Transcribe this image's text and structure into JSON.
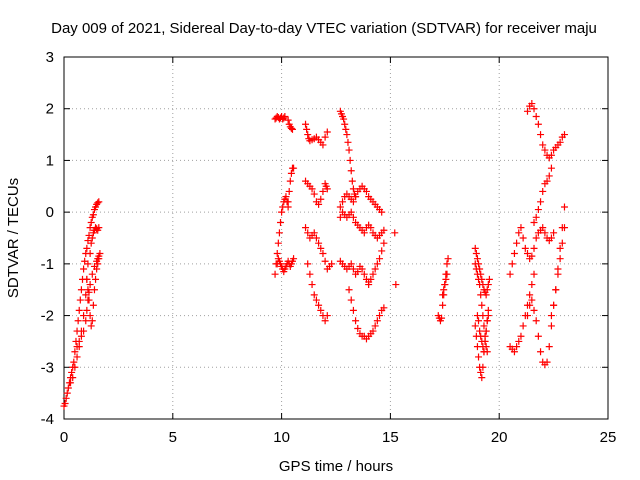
{
  "chart_data": {
    "type": "scatter",
    "title": "Day 009 of 2021, Sidereal Day-to-day VTEC variation (SDTVAR) for receiver maju",
    "xlabel": "GPS time / hours",
    "ylabel": "SDTVAR / TECUs",
    "xlim": [
      0,
      25
    ],
    "ylim": [
      -4,
      3
    ],
    "x_ticks": [
      "0",
      "5",
      "10",
      "15",
      "20",
      "25"
    ],
    "y_ticks": [
      "-4",
      "-3",
      "-2",
      "-1",
      "0",
      "1",
      "2",
      "3"
    ],
    "grid": true,
    "marker": "+",
    "color": "#ff0000",
    "series": [
      {
        "x": [
          0.0,
          0.05,
          0.1,
          0.15,
          0.2,
          0.25,
          0.3,
          0.35,
          0.4,
          0.45,
          0.5,
          0.55,
          0.6,
          0.65,
          0.7,
          0.75,
          0.8,
          0.85,
          0.9,
          0.95,
          1.0,
          1.05,
          1.1,
          1.15,
          1.2,
          1.25,
          1.3,
          1.35,
          1.4,
          1.45,
          1.5,
          1.55,
          1.6
        ],
        "y": [
          -3.75,
          -3.7,
          -3.6,
          -3.5,
          -3.4,
          -3.3,
          -3.2,
          -3.1,
          -3.0,
          -2.9,
          -2.7,
          -2.5,
          -2.3,
          -2.1,
          -1.9,
          -1.7,
          -1.5,
          -1.3,
          -1.1,
          -0.95,
          -0.8,
          -0.7,
          -0.55,
          -0.45,
          -0.3,
          -0.2,
          -0.1,
          -0.05,
          0.05,
          0.1,
          0.15,
          0.18,
          0.2
        ]
      },
      {
        "x": [
          0.3,
          0.4,
          0.5,
          0.6,
          0.7,
          0.8,
          0.9,
          1.0,
          1.05,
          1.1,
          1.15,
          1.2,
          1.3,
          1.4,
          1.5,
          1.55,
          1.6,
          1.65
        ],
        "y": [
          -3.3,
          -3.2,
          -3.0,
          -2.8,
          -2.6,
          -2.4,
          -2.3,
          -2.1,
          -1.9,
          -1.7,
          -1.55,
          -1.4,
          -1.2,
          -1.05,
          -0.95,
          -0.9,
          -0.85,
          -0.8
        ]
      },
      {
        "x": [
          0.6,
          0.7,
          0.8,
          0.9,
          1.0,
          1.05,
          1.1,
          1.2,
          1.25,
          1.3,
          1.35,
          1.4,
          1.45,
          1.5,
          1.55,
          1.6
        ],
        "y": [
          -2.6,
          -2.5,
          -2.3,
          -2.0,
          -1.6,
          -1.3,
          -1.0,
          -0.8,
          -0.6,
          -0.5,
          -0.4,
          -0.35,
          -0.3,
          -0.32,
          -0.35,
          -0.3
        ]
      },
      {
        "x": [
          1.05,
          1.1,
          1.15,
          1.2,
          1.25,
          1.3,
          1.35,
          1.4,
          1.45,
          1.5,
          1.55,
          1.6
        ],
        "y": [
          -1.3,
          -1.5,
          -1.7,
          -2.0,
          -2.2,
          -2.1,
          -1.8,
          -1.5,
          -1.3,
          -1.1,
          -1.0,
          -0.9
        ]
      },
      {
        "x": [
          9.7,
          9.75,
          9.8,
          9.85,
          9.9,
          9.95,
          10.0,
          10.05,
          10.1,
          10.15,
          10.2,
          10.25,
          10.3
        ],
        "y": [
          -1.2,
          -1.0,
          -0.8,
          -0.6,
          -0.4,
          -0.2,
          0.0,
          0.1,
          0.2,
          0.25,
          0.3,
          0.2,
          0.1
        ]
      },
      {
        "x": [
          9.8,
          9.85,
          9.9,
          9.95,
          10.0,
          10.05,
          10.1,
          10.15,
          10.2,
          10.25,
          10.3,
          10.35,
          10.4,
          10.45,
          10.5,
          10.55
        ],
        "y": [
          -1.0,
          -0.9,
          -0.95,
          -1.0,
          -1.05,
          -1.1,
          -1.15,
          -1.1,
          -1.05,
          -1.0,
          -0.95,
          -1.0,
          -1.05,
          -1.0,
          -0.95,
          -0.9
        ]
      },
      {
        "x": [
          10.3,
          10.35,
          10.4,
          10.45,
          10.5,
          10.55
        ],
        "y": [
          0.2,
          0.4,
          0.6,
          0.75,
          0.85,
          0.85
        ]
      },
      {
        "x": [
          9.7,
          9.75,
          9.8,
          9.85,
          9.9,
          9.95,
          10.0,
          10.05,
          10.1,
          10.15,
          10.3,
          10.35,
          10.4,
          10.45,
          10.5
        ],
        "y": [
          1.8,
          1.82,
          1.85,
          1.83,
          1.8,
          1.82,
          1.85,
          1.8,
          1.82,
          1.85,
          1.78,
          1.7,
          1.65,
          1.62,
          1.6
        ]
      },
      {
        "x": [
          11.1,
          11.15,
          11.2,
          11.25,
          11.3,
          11.4,
          11.5,
          11.6,
          11.7,
          11.8,
          11.9,
          12.0,
          12.1
        ],
        "y": [
          1.7,
          1.6,
          1.5,
          1.42,
          1.38,
          1.4,
          1.42,
          1.45,
          1.4,
          1.35,
          1.3,
          1.45,
          1.55
        ]
      },
      {
        "x": [
          11.1,
          11.2,
          11.3,
          11.4,
          11.5,
          11.6,
          11.7,
          11.8,
          11.9,
          12.0,
          12.05,
          12.1
        ],
        "y": [
          0.6,
          0.55,
          0.5,
          0.45,
          0.35,
          0.2,
          0.15,
          0.25,
          0.4,
          0.55,
          0.5,
          0.45
        ]
      },
      {
        "x": [
          11.1,
          11.2,
          11.3,
          11.4,
          11.5,
          11.6,
          11.7,
          11.8,
          11.9,
          12.0,
          12.1,
          12.2,
          12.3
        ],
        "y": [
          -0.3,
          -0.4,
          -0.5,
          -0.45,
          -0.4,
          -0.5,
          -0.6,
          -0.7,
          -0.8,
          -0.95,
          -1.1,
          -1.05,
          -1.0
        ]
      },
      {
        "x": [
          11.2,
          11.3,
          11.4,
          11.5,
          11.6,
          11.7,
          11.8,
          11.9,
          12.0,
          12.1
        ],
        "y": [
          -1.0,
          -1.2,
          -1.4,
          -1.6,
          -1.7,
          -1.8,
          -1.9,
          -2.0,
          -2.1,
          -2.0
        ]
      },
      {
        "x": [
          12.7,
          12.75,
          12.8,
          12.85,
          12.9,
          12.95,
          13.0,
          13.05,
          13.1,
          13.15,
          13.2,
          13.25,
          13.3,
          13.35,
          13.4
        ],
        "y": [
          1.95,
          1.9,
          1.85,
          1.8,
          1.7,
          1.6,
          1.5,
          1.35,
          1.2,
          1.0,
          0.8,
          0.6,
          0.45,
          0.35,
          0.3
        ]
      },
      {
        "x": [
          12.7,
          12.8,
          12.9,
          13.0,
          13.1,
          13.2,
          13.3,
          13.4,
          13.5,
          13.6,
          13.7,
          13.8,
          13.9,
          14.0,
          14.1,
          14.2,
          14.3,
          14.4,
          14.5,
          14.6
        ],
        "y": [
          0.1,
          0.2,
          0.3,
          0.35,
          0.3,
          0.25,
          0.2,
          0.3,
          0.4,
          0.45,
          0.5,
          0.45,
          0.4,
          0.3,
          0.25,
          0.2,
          0.15,
          0.1,
          0.05,
          0.0
        ]
      },
      {
        "x": [
          12.7,
          12.8,
          12.9,
          13.0,
          13.1,
          13.2,
          13.3,
          13.4,
          13.5,
          13.6,
          13.7,
          13.8,
          13.9,
          14.0,
          14.1,
          14.2,
          14.3,
          14.4,
          14.5,
          14.6,
          14.7
        ],
        "y": [
          -0.1,
          0.0,
          -0.05,
          -0.1,
          -0.05,
          0.0,
          -0.1,
          -0.2,
          -0.25,
          -0.3,
          -0.35,
          -0.4,
          -0.3,
          -0.25,
          -0.3,
          -0.4,
          -0.45,
          -0.5,
          -0.45,
          -0.4,
          -0.35
        ]
      },
      {
        "x": [
          12.7,
          12.8,
          12.9,
          13.0,
          13.1,
          13.2,
          13.3,
          13.4,
          13.5,
          13.6,
          13.7,
          13.8,
          13.9,
          14.0
        ],
        "y": [
          -0.95,
          -1.0,
          -1.05,
          -1.1,
          -1.05,
          -1.0,
          -1.1,
          -1.2,
          -1.15,
          -1.05,
          -1.1,
          -1.2,
          -1.3,
          -1.35
        ]
      },
      {
        "x": [
          13.1,
          13.2,
          13.3,
          13.4,
          13.5,
          13.6,
          13.7,
          13.8,
          13.9,
          14.0,
          14.1,
          14.2,
          14.3,
          14.4,
          14.5,
          14.6,
          14.7
        ],
        "y": [
          -1.5,
          -1.7,
          -1.9,
          -2.1,
          -2.25,
          -2.35,
          -2.4,
          -2.4,
          -2.45,
          -2.4,
          -2.35,
          -2.3,
          -2.2,
          -2.1,
          -2.0,
          -1.9,
          -1.85
        ]
      },
      {
        "x": [
          14.0,
          14.1,
          14.2,
          14.3,
          14.4,
          14.5,
          14.6,
          14.7
        ],
        "y": [
          -1.4,
          -1.3,
          -1.2,
          -1.1,
          -1.0,
          -0.9,
          -0.75,
          -0.6
        ]
      },
      {
        "x": [
          15.2,
          15.25
        ],
        "y": [
          -0.4,
          -1.4
        ]
      },
      {
        "x": [
          17.2,
          17.25,
          17.3,
          17.35,
          17.4,
          17.45,
          17.5,
          17.55,
          17.6,
          17.65
        ],
        "y": [
          -2.0,
          -2.05,
          -2.1,
          -2.05,
          -1.8,
          -1.6,
          -1.4,
          -1.2,
          -1.0,
          -0.9
        ]
      },
      {
        "x": [
          17.4,
          17.45,
          17.5,
          17.55,
          17.6
        ],
        "y": [
          -1.6,
          -1.5,
          -1.4,
          -1.3,
          -1.2
        ]
      },
      {
        "x": [
          18.9,
          18.95,
          19.0,
          19.05,
          19.1,
          19.15,
          19.2,
          19.25,
          19.3,
          19.35,
          19.4,
          19.45,
          19.5,
          19.55
        ],
        "y": [
          -0.7,
          -0.8,
          -0.9,
          -1.0,
          -1.1,
          -1.2,
          -1.3,
          -1.4,
          -1.5,
          -1.55,
          -1.6,
          -1.5,
          -1.4,
          -1.3
        ]
      },
      {
        "x": [
          18.9,
          18.95,
          19.0,
          19.05,
          19.1,
          19.15,
          19.2,
          19.25,
          19.3,
          19.35,
          19.4,
          19.45
        ],
        "y": [
          -1.0,
          -1.1,
          -1.2,
          -1.3,
          -1.4,
          -1.6,
          -1.8,
          -2.0,
          -2.2,
          -2.4,
          -2.6,
          -2.7
        ]
      },
      {
        "x": [
          18.9,
          18.95,
          19.0,
          19.05,
          19.1,
          19.15,
          19.2,
          19.25,
          19.3,
          19.35,
          19.4,
          19.45,
          19.5
        ],
        "y": [
          -2.2,
          -2.4,
          -2.6,
          -2.8,
          -3.0,
          -3.1,
          -3.2,
          -3.0,
          -2.7,
          -2.5,
          -2.3,
          -2.1,
          -2.0
        ]
      },
      {
        "x": [
          19.0,
          19.05,
          19.1,
          19.15,
          19.2,
          19.25,
          19.3,
          19.35,
          19.4,
          19.45,
          19.5
        ],
        "y": [
          -2.0,
          -2.1,
          -2.3,
          -2.4,
          -2.5,
          -2.6,
          -2.7,
          -2.5,
          -2.3,
          -2.1,
          -1.9
        ]
      },
      {
        "x": [
          20.5,
          20.6,
          20.7,
          20.8,
          20.9,
          21.0,
          21.1,
          21.2,
          21.3,
          21.4,
          21.5,
          21.6
        ],
        "y": [
          -2.6,
          -2.65,
          -2.7,
          -2.6,
          -2.5,
          -2.4,
          -2.2,
          -2.0,
          -1.8,
          -1.6,
          -1.4,
          -1.2
        ]
      },
      {
        "x": [
          20.5,
          20.6,
          20.7,
          20.8,
          20.9,
          21.0,
          21.1,
          21.2,
          21.3,
          21.4,
          21.5,
          21.6,
          21.7,
          21.8,
          21.9,
          22.0,
          22.1,
          22.2,
          22.3,
          22.4,
          22.5
        ],
        "y": [
          -1.2,
          -1.0,
          -0.8,
          -0.6,
          -0.4,
          -0.3,
          -0.5,
          -0.7,
          -0.8,
          -0.9,
          -0.85,
          -0.7,
          -0.5,
          -0.4,
          -0.35,
          -0.3,
          -0.4,
          -0.5,
          -0.55,
          -0.5,
          -0.4
        ]
      },
      {
        "x": [
          21.3,
          21.4,
          21.5,
          21.6,
          21.7,
          21.8,
          21.9,
          22.0,
          22.1,
          22.2,
          22.3,
          22.4,
          22.5,
          22.6,
          22.7,
          22.8,
          22.9,
          23.0
        ],
        "y": [
          -2.0,
          -1.8,
          -1.7,
          -1.9,
          -2.1,
          -2.4,
          -2.7,
          -2.9,
          -2.95,
          -2.9,
          -2.6,
          -2.2,
          -1.8,
          -1.5,
          -1.1,
          -0.7,
          -0.3,
          0.1
        ]
      },
      {
        "x": [
          21.3,
          21.4,
          21.5,
          21.6,
          21.7,
          21.8,
          21.9,
          22.0,
          22.1,
          22.2,
          22.3,
          22.4,
          22.5,
          22.6,
          22.7,
          22.8,
          22.9,
          23.0
        ],
        "y": [
          1.95,
          2.05,
          2.1,
          2.0,
          1.85,
          1.7,
          1.5,
          1.3,
          1.2,
          1.1,
          1.05,
          1.1,
          1.2,
          1.25,
          1.3,
          1.35,
          1.45,
          1.5
        ]
      },
      {
        "x": [
          21.6,
          21.7,
          21.8,
          21.9,
          22.0,
          22.1,
          22.2,
          22.3,
          22.4
        ],
        "y": [
          -0.2,
          -0.1,
          0.05,
          0.2,
          0.4,
          0.55,
          0.6,
          0.7,
          0.85
        ]
      },
      {
        "x": [
          22.4,
          22.5,
          22.6,
          22.7,
          22.8,
          22.9,
          23.0
        ],
        "y": [
          -2.0,
          -1.8,
          -1.5,
          -1.2,
          -0.9,
          -0.6,
          -0.3
        ]
      }
    ]
  }
}
